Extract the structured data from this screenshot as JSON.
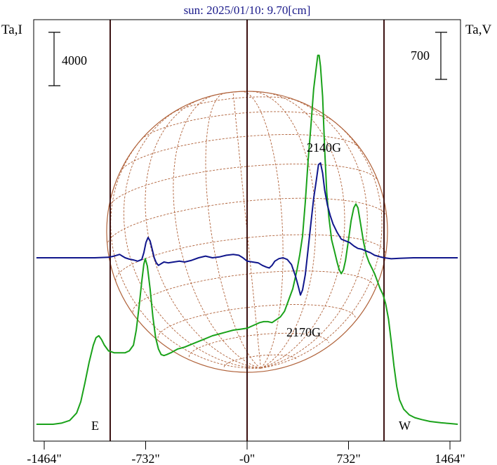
{
  "chart_data": {
    "type": "line",
    "title": "sun: 2025/01/10: 9.70[cm]",
    "left_axis_label": "Ta,I",
    "right_axis_label": "Ta,V",
    "left_scale_bar": "4000",
    "right_scale_bar": "700",
    "xlim": [
      -1540,
      1540
    ],
    "x_ticks": [
      {
        "value": -1464,
        "label": "-1464\""
      },
      {
        "value": -732,
        "label": "-732\""
      },
      {
        "value": 0,
        "label": "-0\""
      },
      {
        "value": 732,
        "label": "732\""
      },
      {
        "value": 1464,
        "label": "1464\""
      }
    ],
    "limb_markers": [
      {
        "value": -988,
        "label": "E"
      },
      {
        "value": 988,
        "label": "W"
      }
    ],
    "annotations": [
      {
        "label": "2140G",
        "x": 490,
        "y": 210
      },
      {
        "label": "2170G",
        "x": 430,
        "y": 472
      }
    ],
    "disk": {
      "radius_arcsec": 988,
      "grid_color": "#b0623a"
    },
    "colors": {
      "stokes_I": "#1aa21a",
      "stokes_V": "#10168c",
      "axis_lines": "#3a1010",
      "frame": "#000000"
    },
    "series": [
      {
        "name": "",
        "color": "#1aa21a",
        "points": [
          [
            -1520,
            0.0
          ],
          [
            -1400,
            0.0
          ],
          [
            -1340,
            0.006
          ],
          [
            -1280,
            0.02
          ],
          [
            -1230,
            0.06
          ],
          [
            -1200,
            0.12
          ],
          [
            -1170,
            0.22
          ],
          [
            -1140,
            0.33
          ],
          [
            -1110,
            0.42
          ],
          [
            -1090,
            0.46
          ],
          [
            -1070,
            0.47
          ],
          [
            -1050,
            0.45
          ],
          [
            -1030,
            0.42
          ],
          [
            -1000,
            0.39
          ],
          [
            -960,
            0.38
          ],
          [
            -920,
            0.38
          ],
          [
            -880,
            0.38
          ],
          [
            -850,
            0.39
          ],
          [
            -820,
            0.42
          ],
          [
            -800,
            0.5
          ],
          [
            -780,
            0.62
          ],
          [
            -760,
            0.76
          ],
          [
            -745,
            0.85
          ],
          [
            -735,
            0.88
          ],
          [
            -720,
            0.84
          ],
          [
            -700,
            0.72
          ],
          [
            -680,
            0.57
          ],
          [
            -660,
            0.46
          ],
          [
            -640,
            0.4
          ],
          [
            -620,
            0.37
          ],
          [
            -600,
            0.365
          ],
          [
            -580,
            0.37
          ],
          [
            -550,
            0.38
          ],
          [
            -500,
            0.4
          ],
          [
            -450,
            0.41
          ],
          [
            -400,
            0.425
          ],
          [
            -350,
            0.44
          ],
          [
            -300,
            0.455
          ],
          [
            -250,
            0.47
          ],
          [
            -200,
            0.48
          ],
          [
            -150,
            0.49
          ],
          [
            -100,
            0.5
          ],
          [
            -50,
            0.505
          ],
          [
            0,
            0.51
          ],
          [
            30,
            0.52
          ],
          [
            60,
            0.53
          ],
          [
            90,
            0.54
          ],
          [
            120,
            0.545
          ],
          [
            150,
            0.545
          ],
          [
            180,
            0.54
          ],
          [
            200,
            0.55
          ],
          [
            240,
            0.57
          ],
          [
            270,
            0.6
          ],
          [
            300,
            0.66
          ],
          [
            330,
            0.72
          ],
          [
            360,
            0.82
          ],
          [
            380,
            0.9
          ],
          [
            400,
            1.0
          ],
          [
            420,
            1.18
          ],
          [
            440,
            1.4
          ],
          [
            460,
            1.58
          ],
          [
            480,
            1.78
          ],
          [
            500,
            1.9
          ],
          [
            510,
            1.96
          ],
          [
            520,
            1.96
          ],
          [
            530,
            1.9
          ],
          [
            545,
            1.74
          ],
          [
            560,
            1.46
          ],
          [
            575,
            1.23
          ],
          [
            590,
            1.1
          ],
          [
            610,
            0.98
          ],
          [
            630,
            0.92
          ],
          [
            650,
            0.86
          ],
          [
            665,
            0.82
          ],
          [
            680,
            0.8
          ],
          [
            695,
            0.82
          ],
          [
            710,
            0.87
          ],
          [
            730,
            0.97
          ],
          [
            750,
            1.08
          ],
          [
            770,
            1.15
          ],
          [
            785,
            1.17
          ],
          [
            800,
            1.15
          ],
          [
            820,
            1.06
          ],
          [
            840,
            0.97
          ],
          [
            860,
            0.9
          ],
          [
            880,
            0.86
          ],
          [
            900,
            0.83
          ],
          [
            920,
            0.8
          ],
          [
            940,
            0.76
          ],
          [
            960,
            0.72
          ],
          [
            980,
            0.69
          ],
          [
            1000,
            0.64
          ],
          [
            1020,
            0.56
          ],
          [
            1040,
            0.44
          ],
          [
            1060,
            0.31
          ],
          [
            1080,
            0.2
          ],
          [
            1100,
            0.13
          ],
          [
            1130,
            0.08
          ],
          [
            1170,
            0.05
          ],
          [
            1210,
            0.035
          ],
          [
            1260,
            0.025
          ],
          [
            1320,
            0.015
          ],
          [
            1400,
            0.008
          ],
          [
            1460,
            0.004
          ],
          [
            1520,
            0.0
          ]
        ]
      },
      {
        "name": "",
        "color": "#10168c",
        "points": [
          [
            -1520,
            0.0
          ],
          [
            -1460,
            0.0
          ],
          [
            -1400,
            0.0
          ],
          [
            -1300,
            0.0
          ],
          [
            -1200,
            0.0
          ],
          [
            -1100,
            0.0
          ],
          [
            -1000,
            0.003
          ],
          [
            -960,
            0.01
          ],
          [
            -920,
            0.02
          ],
          [
            -900,
            0.01
          ],
          [
            -880,
            0.0
          ],
          [
            -850,
            -0.008
          ],
          [
            -820,
            -0.013
          ],
          [
            -790,
            -0.02
          ],
          [
            -760,
            -0.01
          ],
          [
            -745,
            0.03
          ],
          [
            -730,
            0.09
          ],
          [
            -715,
            0.12
          ],
          [
            -700,
            0.1
          ],
          [
            -685,
            0.05
          ],
          [
            -670,
            0.0
          ],
          [
            -655,
            -0.03
          ],
          [
            -640,
            -0.045
          ],
          [
            -620,
            -0.035
          ],
          [
            -600,
            -0.025
          ],
          [
            -570,
            -0.03
          ],
          [
            -530,
            -0.025
          ],
          [
            -490,
            -0.02
          ],
          [
            -450,
            -0.025
          ],
          [
            -400,
            -0.015
          ],
          [
            -350,
            0.0
          ],
          [
            -300,
            0.01
          ],
          [
            -250,
            0.0
          ],
          [
            -200,
            0.005
          ],
          [
            -150,
            0.015
          ],
          [
            -100,
            0.02
          ],
          [
            -60,
            0.015
          ],
          [
            -30,
            0.0
          ],
          [
            0,
            -0.02
          ],
          [
            40,
            -0.025
          ],
          [
            80,
            -0.03
          ],
          [
            110,
            -0.045
          ],
          [
            140,
            -0.055
          ],
          [
            160,
            -0.06
          ],
          [
            180,
            -0.045
          ],
          [
            200,
            -0.02
          ],
          [
            230,
            -0.005
          ],
          [
            260,
            0.0
          ],
          [
            290,
            -0.01
          ],
          [
            320,
            -0.04
          ],
          [
            350,
            -0.11
          ],
          [
            370,
            -0.17
          ],
          [
            385,
            -0.22
          ],
          [
            400,
            -0.19
          ],
          [
            420,
            -0.1
          ],
          [
            440,
            0.05
          ],
          [
            460,
            0.2
          ],
          [
            480,
            0.35
          ],
          [
            500,
            0.46
          ],
          [
            515,
            0.55
          ],
          [
            530,
            0.56
          ],
          [
            545,
            0.5
          ],
          [
            560,
            0.4
          ],
          [
            580,
            0.31
          ],
          [
            600,
            0.25
          ],
          [
            620,
            0.2
          ],
          [
            650,
            0.15
          ],
          [
            680,
            0.11
          ],
          [
            710,
            0.1
          ],
          [
            740,
            0.09
          ],
          [
            770,
            0.07
          ],
          [
            800,
            0.055
          ],
          [
            830,
            0.05
          ],
          [
            860,
            0.04
          ],
          [
            890,
            0.03
          ],
          [
            920,
            0.015
          ],
          [
            960,
            0.006
          ],
          [
            990,
            0.0
          ],
          [
            1040,
            -0.006
          ],
          [
            1100,
            -0.003
          ],
          [
            1200,
            0.0
          ],
          [
            1300,
            0.0
          ],
          [
            1400,
            0.0
          ],
          [
            1520,
            0.0
          ]
        ]
      }
    ]
  }
}
